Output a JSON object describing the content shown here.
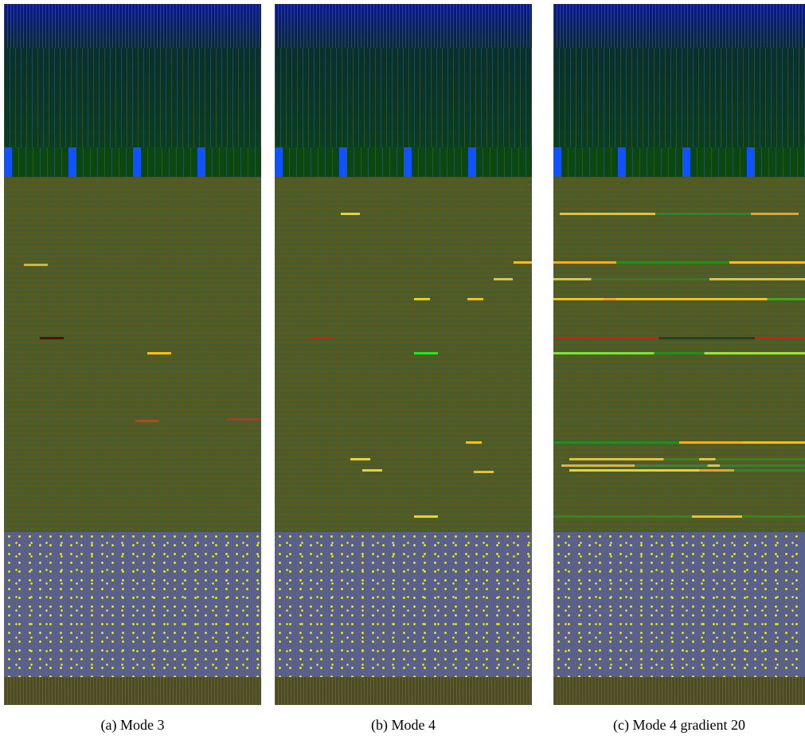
{
  "figure": {
    "panels": [
      {
        "caption": "(a) Mode 3"
      },
      {
        "caption": "(b) Mode 4"
      },
      {
        "caption": "(c) Mode 4 gradient 20"
      }
    ]
  }
}
